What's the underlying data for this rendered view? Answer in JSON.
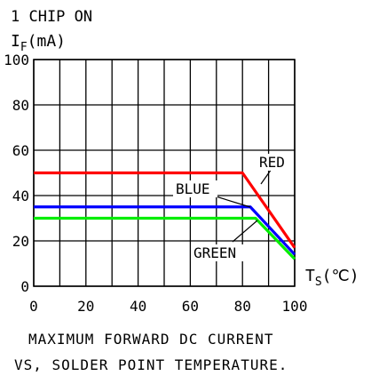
{
  "chart_data": {
    "type": "line",
    "header": "1 CHIP ON",
    "ylabel_main": "I",
    "ylabel_sub": "F",
    "ylabel_unit": "(mA)",
    "xlabel_main": "T",
    "xlabel_sub": "S",
    "xlabel_unit": "(℃)",
    "xlim": [
      0,
      100
    ],
    "ylim": [
      0,
      100
    ],
    "x_ticks": [
      "0",
      "20",
      "40",
      "60",
      "80",
      "100"
    ],
    "y_ticks": [
      "0",
      "20",
      "40",
      "60",
      "80",
      "100"
    ],
    "grid": true,
    "series": [
      {
        "name": "RED",
        "color": "#ff0000",
        "x": [
          0,
          80,
          100
        ],
        "y": [
          50,
          50,
          17
        ]
      },
      {
        "name": "BLUE",
        "color": "#0000ff",
        "x": [
          0,
          83,
          100
        ],
        "y": [
          35,
          35,
          14
        ]
      },
      {
        "name": "GREEN",
        "color": "#00ee00",
        "x": [
          0,
          85,
          100
        ],
        "y": [
          30,
          30,
          12
        ]
      }
    ],
    "caption_line1": "MAXIMUM FORWARD DC CURRENT",
    "caption_line2": "VS, SOLDER POINT TEMPERATURE."
  }
}
